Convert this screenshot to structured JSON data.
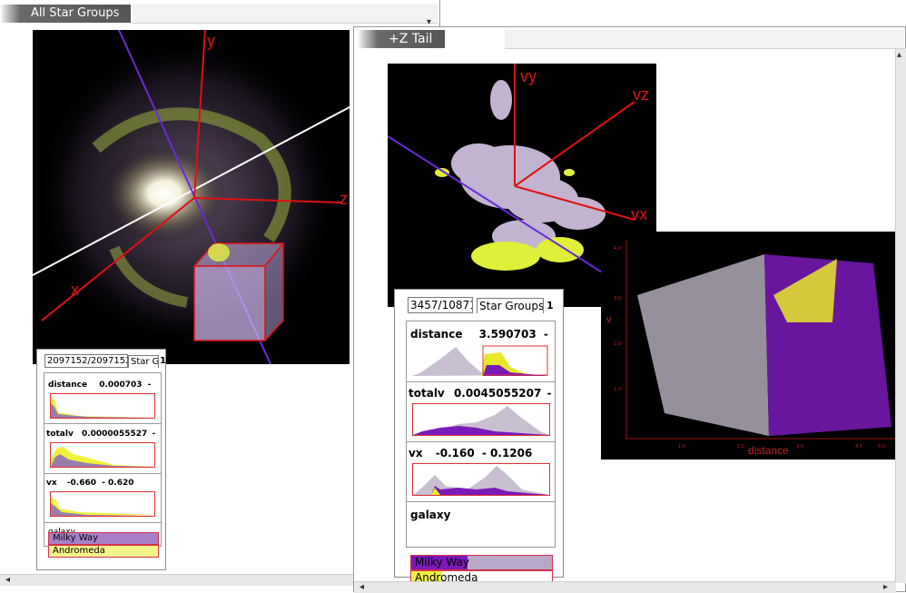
{
  "left_window": {
    "title": "All Star Groups",
    "axis_labels": {
      "y": "y",
      "z": "z",
      "x": "x"
    },
    "panel": {
      "tab_count": "2097152/2097152",
      "tab_groups": "Star G",
      "tab_badge": "1",
      "rows": [
        {
          "name": "distance",
          "value": "0.000703",
          "suffix": "-"
        },
        {
          "name": "totalv",
          "value": "0.0000055527",
          "suffix": "-"
        },
        {
          "name": "vx",
          "value": "-0.660",
          "suffix": "- 0.620"
        }
      ],
      "category_label": "galaxy",
      "items": [
        "Milky Way",
        "Andromeda"
      ]
    }
  },
  "right_window": {
    "title": "+Z Tail",
    "axis_labels": {
      "vy": "vy",
      "vz": "vz",
      "vx": "vx"
    },
    "panel": {
      "tab_count": "3457/10871",
      "tab_groups": "Star Groups",
      "tab_badge": "1",
      "rows": [
        {
          "name": "distance",
          "value": "3.590703",
          "suffix": "-"
        },
        {
          "name": "totalv",
          "value": "0.0045055207",
          "suffix": "-"
        },
        {
          "name": "vx",
          "value": "-0.160",
          "suffix": "- 0.1206"
        }
      ],
      "category_label": "galaxy",
      "items": [
        "Milky Way",
        "Andromeda"
      ]
    },
    "scatter": {
      "xlabel": "distance",
      "ylabel": "v",
      "xticks": [
        "1.0",
        "2.0",
        "3.0",
        "4.0",
        "5.0"
      ],
      "yticks": [
        "4.0",
        "3.0",
        "2.0",
        "1.0"
      ]
    }
  },
  "colors": {
    "milky_way": "#8a2ec0",
    "andromeda": "#f2f23a",
    "neutral": "#c8c0cc",
    "axis": "#e01010",
    "accent_line": "#6a2ad8"
  }
}
